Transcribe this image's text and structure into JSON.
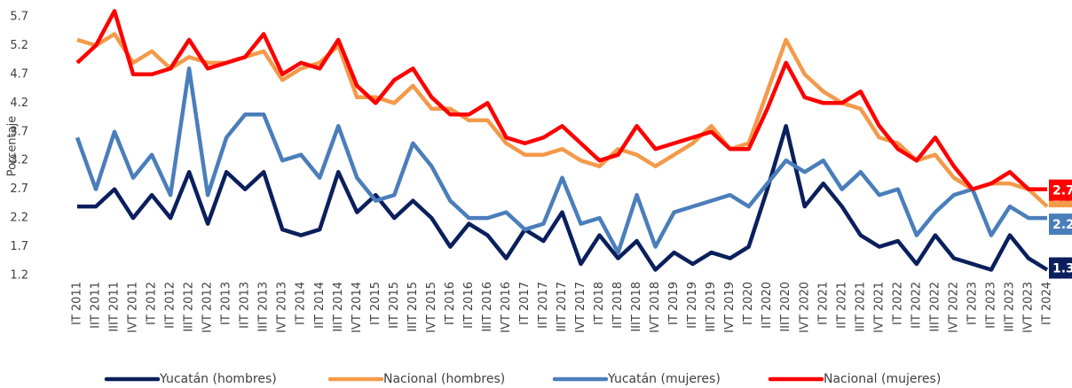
{
  "chart_data": {
    "type": "line",
    "y_label": "Porcentaje",
    "categories": [
      "IT 2011",
      "IIT 2011",
      "IIIT 2011",
      "IVT 2011",
      "IT 2012",
      "IIT 2012",
      "IIIT 2012",
      "IVT 2012",
      "IT 2013",
      "IIT 2013",
      "IIIT 2013",
      "IVT 2013",
      "IT 2014",
      "IIT 2014",
      "IIIT 2014",
      "IVT 2014",
      "IT 2015",
      "IIT 2015",
      "IIIT 2015",
      "IVT 2015",
      "IT 2016",
      "IIT 2016",
      "IIIT 2016",
      "IVT 2016",
      "IT 2017",
      "IIT 2017",
      "IIIT 2017",
      "IVT 2017",
      "IT 2018",
      "IIT 2018",
      "IIIT 2018",
      "IVT 2018",
      "IT 2019",
      "IIT 2019",
      "IIIT 2019",
      "IVT 2019",
      "IT 2020",
      "IIT 2020",
      "IIIT 2020",
      "IVT 2020",
      "IT 2021",
      "IIT 2021",
      "IIIT 2021",
      "IVT 2021",
      "IT 2022",
      "IIT 2022",
      "IIIT 2022",
      "IVT 2022",
      "IT 2023",
      "IIT 2023",
      "IIIT 2023",
      "IVT 2023",
      "IT 2024"
    ],
    "series": [
      {
        "name": "Yucatán (hombres)",
        "color": "#0a1f5c",
        "values": [
          2.4,
          2.4,
          2.7,
          2.2,
          2.6,
          2.2,
          3.0,
          2.1,
          3.0,
          2.7,
          3.0,
          2.0,
          1.9,
          2.0,
          3.0,
          2.3,
          2.6,
          2.2,
          2.5,
          2.2,
          1.7,
          2.1,
          1.9,
          1.5,
          2.0,
          1.8,
          2.3,
          1.4,
          1.9,
          1.5,
          1.8,
          1.3,
          1.6,
          1.4,
          1.6,
          1.5,
          1.7,
          2.7,
          3.8,
          2.4,
          2.8,
          2.4,
          1.9,
          1.7,
          1.8,
          1.4,
          1.9,
          1.5,
          1.4,
          1.3,
          1.9,
          1.5,
          1.3
        ]
      },
      {
        "name": "Nacional (hombres)",
        "color": "#f39a4a",
        "values": [
          5.3,
          5.2,
          5.4,
          4.9,
          5.1,
          4.8,
          5.0,
          4.9,
          4.9,
          5.0,
          5.1,
          4.6,
          4.8,
          4.9,
          5.2,
          4.3,
          4.3,
          4.2,
          4.5,
          4.1,
          4.1,
          3.9,
          3.9,
          3.5,
          3.3,
          3.3,
          3.4,
          3.2,
          3.1,
          3.4,
          3.3,
          3.1,
          3.3,
          3.5,
          3.8,
          3.4,
          3.5,
          4.4,
          5.3,
          4.7,
          4.4,
          4.2,
          4.1,
          3.6,
          3.5,
          3.2,
          3.3,
          2.9,
          2.7,
          2.8,
          2.8,
          2.7,
          2.4
        ]
      },
      {
        "name": "Yucatán (mujeres)",
        "color": "#4a7ebb",
        "values": [
          3.6,
          2.7,
          3.7,
          2.9,
          3.3,
          2.6,
          4.8,
          2.6,
          3.6,
          4.0,
          4.0,
          3.2,
          3.3,
          2.9,
          3.8,
          2.9,
          2.5,
          2.6,
          3.5,
          3.1,
          2.5,
          2.2,
          2.2,
          2.3,
          2.0,
          2.1,
          2.9,
          2.1,
          2.2,
          1.6,
          2.6,
          1.7,
          2.3,
          2.4,
          2.5,
          2.6,
          2.4,
          2.8,
          3.2,
          3.0,
          3.2,
          2.7,
          3.0,
          2.6,
          2.7,
          1.9,
          2.3,
          2.6,
          2.7,
          1.9,
          2.4,
          2.2,
          2.2
        ]
      },
      {
        "name": "Nacional (mujeres)",
        "color": "#ff0000",
        "values": [
          4.9,
          5.2,
          5.8,
          4.7,
          4.7,
          4.8,
          5.3,
          4.8,
          4.9,
          5.0,
          5.4,
          4.7,
          4.9,
          4.8,
          5.3,
          4.5,
          4.2,
          4.6,
          4.8,
          4.3,
          4.0,
          4.0,
          4.2,
          3.6,
          3.5,
          3.6,
          3.8,
          3.5,
          3.2,
          3.3,
          3.8,
          3.4,
          3.5,
          3.6,
          3.7,
          3.4,
          3.4,
          4.1,
          4.9,
          4.3,
          4.2,
          4.2,
          4.4,
          3.8,
          3.4,
          3.2,
          3.6,
          3.1,
          2.7,
          2.8,
          3.0,
          2.7,
          2.7
        ]
      }
    ],
    "ylim": [
      1.2,
      5.8
    ],
    "yticks": [
      1.2,
      1.7,
      2.2,
      2.7,
      3.2,
      3.7,
      4.2,
      4.7,
      5.2,
      5.7
    ],
    "legend": "bottom"
  }
}
